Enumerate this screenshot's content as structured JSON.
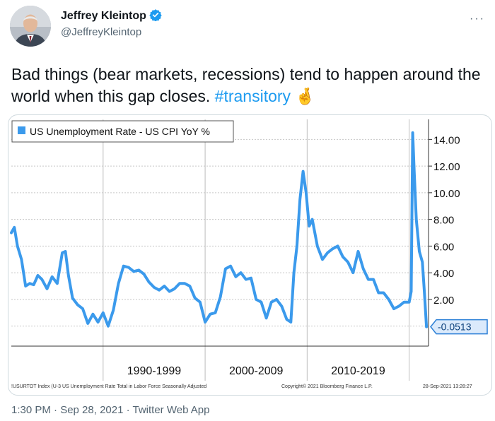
{
  "author": {
    "name": "Jeffrey Kleintop",
    "handle": "@JeffreyKleintop",
    "verified_icon": "verified-badge-icon",
    "verified_color": "#1d9bf0"
  },
  "more_icon": "more-options-icon",
  "tweet": {
    "text": "Bad things (bear markets, recessions) tend to happen around the world when this gap closes.",
    "hashtag": "#transitory",
    "emoji": "🤞",
    "timestamp": "1:30 PM · Sep 28, 2021 · Twitter Web App"
  },
  "chart_data": {
    "type": "line",
    "legend": "US Unemployment Rate - US CPI YoY %",
    "series_color": "#3b9aec",
    "current_value_label": "-0.0513",
    "current_value": -0.0513,
    "ylim": [
      -1.5,
      15.5
    ],
    "yticks": [
      "2.00",
      "4.00",
      "6.00",
      "8.00",
      "10.00",
      "12.00",
      "14.00"
    ],
    "ytick_values": [
      2,
      4,
      6,
      8,
      10,
      12,
      14
    ],
    "period_labels": [
      "1990-1999",
      "2000-2009",
      "2010-2019"
    ],
    "footer_left": "!USURTOT Index (U-3 US Unemployment Rate Total in Labor Force Seasonally Adjusted",
    "footer_mid": "Copyright© 2021 Bloomberg Finance L.P.",
    "footer_right": "28-Sep-2021 13:28:27",
    "x": [
      1981.0,
      1981.3,
      1981.6,
      1982.0,
      1982.4,
      1982.8,
      1983.2,
      1983.6,
      1984.0,
      1984.5,
      1985.0,
      1985.5,
      1986.0,
      1986.3,
      1986.6,
      1987.0,
      1987.5,
      1988.0,
      1988.5,
      1989.0,
      1989.5,
      1990.0,
      1990.5,
      1991.0,
      1991.5,
      1992.0,
      1992.5,
      1993.0,
      1993.5,
      1994.0,
      1994.5,
      1995.0,
      1995.5,
      1996.0,
      1996.5,
      1997.0,
      1997.5,
      1998.0,
      1998.5,
      1999.0,
      1999.5,
      2000.0,
      2000.5,
      2001.0,
      2001.5,
      2002.0,
      2002.5,
      2003.0,
      2003.5,
      2004.0,
      2004.5,
      2005.0,
      2005.5,
      2006.0,
      2006.5,
      2007.0,
      2007.5,
      2008.0,
      2008.4,
      2008.7,
      2009.0,
      2009.3,
      2009.6,
      2009.9,
      2010.2,
      2010.5,
      2011.0,
      2011.5,
      2012.0,
      2012.5,
      2013.0,
      2013.5,
      2014.0,
      2014.5,
      2015.0,
      2015.5,
      2016.0,
      2016.5,
      2017.0,
      2017.5,
      2018.0,
      2018.5,
      2019.0,
      2019.5,
      2020.0,
      2020.2,
      2020.35,
      2020.5,
      2020.7,
      2021.0,
      2021.3,
      2021.5,
      2021.7
    ],
    "values": [
      7.0,
      7.4,
      6.0,
      5.0,
      3.0,
      3.2,
      3.1,
      3.8,
      3.5,
      2.8,
      3.7,
      3.2,
      5.5,
      5.6,
      3.8,
      2.1,
      1.6,
      1.3,
      0.2,
      0.9,
      0.3,
      1.0,
      0.0,
      1.2,
      3.2,
      4.5,
      4.4,
      4.1,
      4.2,
      3.9,
      3.3,
      2.9,
      2.7,
      3.0,
      2.6,
      2.8,
      3.2,
      3.2,
      3.0,
      2.1,
      1.8,
      0.3,
      0.9,
      1.0,
      2.2,
      4.3,
      4.5,
      3.7,
      4.0,
      3.5,
      3.6,
      2.0,
      1.8,
      0.6,
      1.8,
      2.0,
      1.5,
      0.5,
      0.3,
      4.0,
      6.0,
      9.5,
      11.6,
      10.0,
      7.5,
      8.0,
      6.0,
      5.0,
      5.5,
      5.8,
      6.0,
      5.2,
      4.8,
      4.0,
      5.6,
      4.3,
      3.5,
      3.5,
      2.5,
      2.5,
      2.0,
      1.3,
      1.5,
      1.8,
      1.8,
      2.6,
      14.5,
      11.5,
      8.0,
      5.6,
      4.8,
      2.5,
      -0.05
    ]
  }
}
